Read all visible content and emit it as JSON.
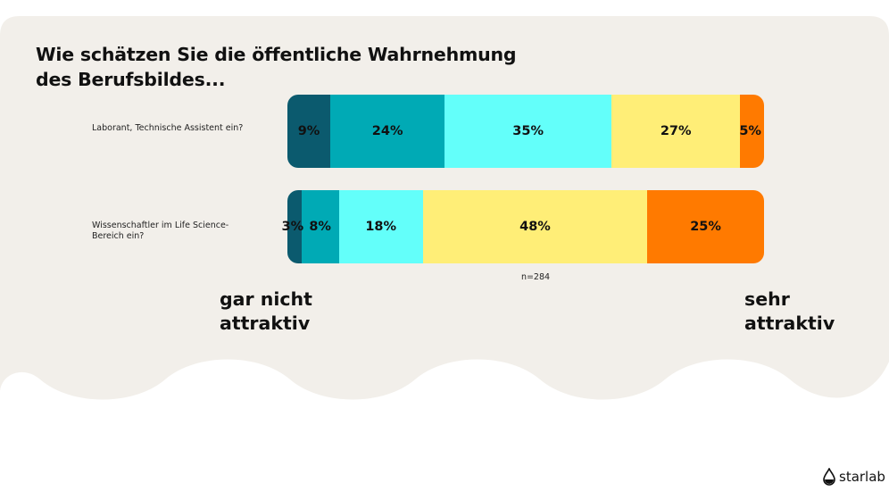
{
  "title_lines": [
    "Wie schätzen Sie die öffentliche Wahrnehmung",
    "des Berufsbildes..."
  ],
  "colors": {
    "background_card": "#f2efea",
    "segments": [
      "#0b5a6e",
      "#00aab5",
      "#63fffa",
      "#ffee77",
      "#ff7a00"
    ]
  },
  "chart_data": {
    "type": "bar",
    "orientation": "horizontal",
    "stacked": true,
    "categories": [
      "Laborant, Technische Assistent ein?",
      "Wissenschaftler im Life Science-Bereich ein?"
    ],
    "rows": [
      {
        "label_lines": [
          "Laborant, Technische Assistent ein?"
        ],
        "values": [
          9,
          24,
          35,
          27,
          5
        ]
      },
      {
        "label_lines": [
          "Wissenschaftler im Life Science-",
          "Bereich ein?"
        ],
        "values": [
          3,
          8,
          18,
          48,
          25
        ]
      }
    ],
    "scale_low_lines": [
      "gar nicht",
      "attraktiv"
    ],
    "scale_high_lines": [
      "sehr",
      "attraktiv"
    ],
    "note": "n=284",
    "unit": "%"
  },
  "brand": {
    "name": "starlab"
  }
}
